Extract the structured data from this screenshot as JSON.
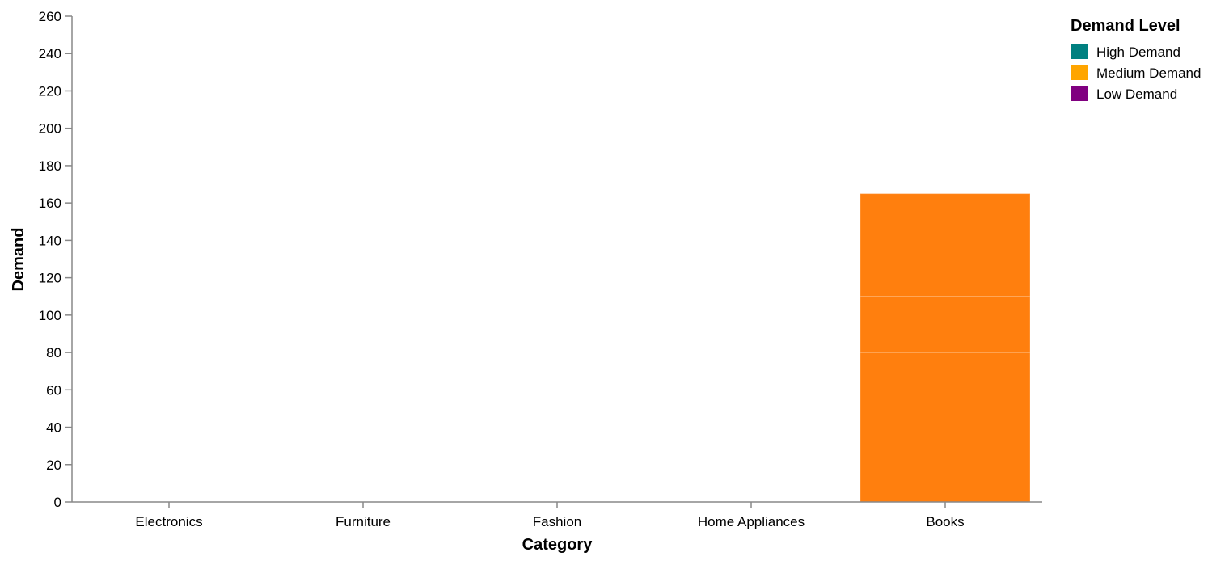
{
  "chart_data": {
    "type": "bar",
    "stacked": true,
    "xlabel": "Category",
    "ylabel": "Demand",
    "categories": [
      "Electronics",
      "Furniture",
      "Fashion",
      "Home Appliances",
      "Books"
    ],
    "y_ticks": [
      0,
      20,
      40,
      60,
      80,
      100,
      120,
      140,
      160,
      180,
      200,
      220,
      240,
      260
    ],
    "ylim": [
      0,
      260
    ],
    "grid": false,
    "legend": {
      "title": "Demand Level",
      "placement": "top-right",
      "entries": [
        {
          "label": "High Demand",
          "color": "#008080"
        },
        {
          "label": "Medium Demand",
          "color": "#FFA500"
        },
        {
          "label": "Low Demand",
          "color": "#800080"
        }
      ]
    },
    "bar_color": "#FF7F0E",
    "segments": [
      {
        "category": "Books",
        "start": 0,
        "end": 80
      },
      {
        "category": "Books",
        "start": 80,
        "end": 110
      },
      {
        "category": "Books",
        "start": 110,
        "end": 165
      }
    ]
  }
}
